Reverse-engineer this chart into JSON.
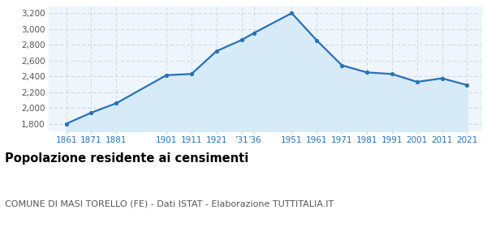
{
  "years": [
    1861,
    1871,
    1881,
    1901,
    1911,
    1921,
    1931,
    1936,
    1951,
    1961,
    1971,
    1981,
    1991,
    2001,
    2011,
    2021
  ],
  "population": [
    1800,
    1940,
    2060,
    2415,
    2430,
    2720,
    2860,
    2950,
    3200,
    2855,
    2540,
    2450,
    2430,
    2330,
    2375,
    2290
  ],
  "line_color": "#2871b8",
  "fill_color": "#d6eaf8",
  "marker_color": "#2871b8",
  "grid_color": "#c8d8e8",
  "background_color": "#eef5fc",
  "title": "Popolazione residente ai censimenti",
  "subtitle": "COMUNE DI MASI TORELLO (FE) - Dati ISTAT - Elaborazione TUTTITALIA.IT",
  "ylim": [
    1700,
    3280
  ],
  "yticks": [
    1800,
    2000,
    2200,
    2400,
    2600,
    2800,
    3000,
    3200
  ],
  "title_fontsize": 10.5,
  "subtitle_fontsize": 8,
  "tick_fontsize": 7.5,
  "xlim_left": 1854,
  "xlim_right": 2027
}
